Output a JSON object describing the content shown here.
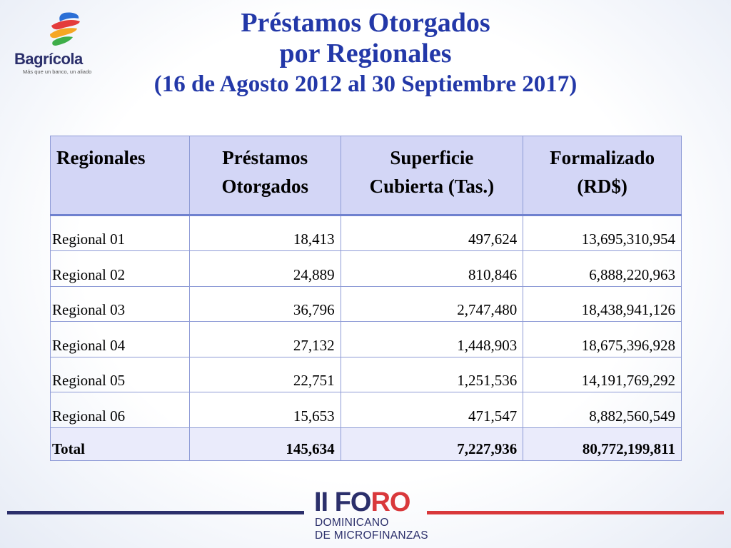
{
  "logo": {
    "name": "Bagrícola",
    "tagline": "Más que un banco, un aliado"
  },
  "title": {
    "line1": "Préstamos Otorgados",
    "line2": "por Regionales",
    "line3": "(16 de Agosto 2012 al 30 Septiembre 2017)"
  },
  "table": {
    "headers": {
      "regionales": "Regionales",
      "prestamos_1": "Préstamos",
      "prestamos_2": "Otorgados",
      "superficie_1": "Superficie",
      "superficie_2": "Cubierta (Tas.)",
      "formalizado_1": "Formalizado",
      "formalizado_2": "(RD$)"
    },
    "rows": [
      {
        "region": "Regional 01",
        "prestamos": "18,413",
        "superficie": "497,624",
        "formalizado": "13,695,310,954"
      },
      {
        "region": "Regional 02",
        "prestamos": "24,889",
        "superficie": "810,846",
        "formalizado": "6,888,220,963"
      },
      {
        "region": "Regional 03",
        "prestamos": "36,796",
        "superficie": "2,747,480",
        "formalizado": "18,438,941,126"
      },
      {
        "region": "Regional 04",
        "prestamos": "27,132",
        "superficie": "1,448,903",
        "formalizado": "18,675,396,928"
      },
      {
        "region": "Regional 05",
        "prestamos": "22,751",
        "superficie": "1,251,536",
        "formalizado": "14,191,769,292"
      },
      {
        "region": "Regional 06",
        "prestamos": "15,653",
        "superficie": "471,547",
        "formalizado": "8,882,560,549"
      }
    ],
    "total": {
      "region": "Total",
      "prestamos": "145,634",
      "superficie": "7,227,936",
      "formalizado": "80,772,199,811"
    }
  },
  "footer": {
    "foro_ii": "II",
    "foro_fo": "FO",
    "foro_ro": "RO",
    "foro_line2": "DOMINICANO",
    "foro_line3": "DE MICROFINANZAS"
  },
  "colors": {
    "title": "#2338a8",
    "header_bg": "#d3d6f6",
    "border": "#8e9bd6",
    "navy": "#2b2f6b",
    "red": "#d9383b"
  }
}
